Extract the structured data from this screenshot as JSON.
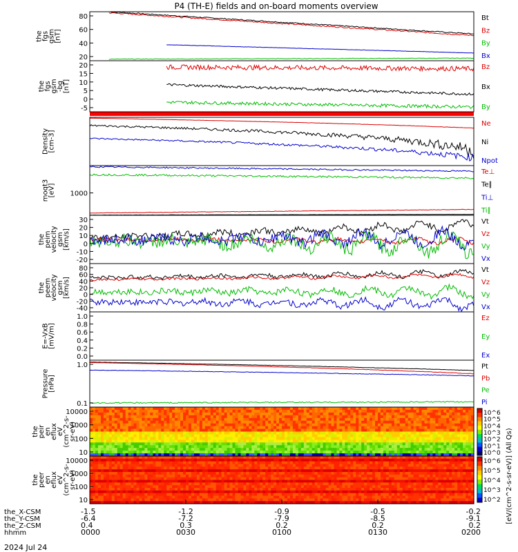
{
  "title": "P4 (TH-E) fields and on-board moments overview",
  "date_label": "2024 Jul 24",
  "colorbar_label": "[eV/(cm^2-s-sr-eV)] (All Qs)",
  "colorbar_ticks": [
    "10^6",
    "10^5",
    "10^4",
    "10^3",
    "10^2",
    "10^1",
    "10^0"
  ],
  "colorbar_ticks2": [
    "10^6",
    "10^5",
    "10^4",
    "10^3",
    "10^2"
  ],
  "footer": {
    "rows": [
      {
        "label": "the_X-CSM",
        "values": [
          "-1.5",
          "-1.2",
          "-0.9",
          "-0.5",
          "-0.2"
        ]
      },
      {
        "label": "the_Y-CSM",
        "values": [
          "-6.4",
          "-7.2",
          "-7.9",
          "-8.5",
          "-9.1"
        ]
      },
      {
        "label": "the_Z-CSM",
        "values": [
          "0.4",
          "0.3",
          "0.2",
          "0.2",
          "0.2"
        ]
      },
      {
        "label": "hhmm",
        "values": [
          "0000",
          "0030",
          "0100",
          "0130",
          "0200"
        ]
      }
    ]
  },
  "chart_data": [
    {
      "id": "p1",
      "type": "line",
      "ylabel": [
        "the",
        "fgs",
        "gsm",
        "[nT]"
      ],
      "yticks": [
        "80",
        "60",
        "40",
        "20"
      ],
      "ylim": [
        0,
        95
      ],
      "series": [
        {
          "name": "Bt",
          "color": "#000000",
          "start": 95,
          "end": 52,
          "noise": 1.0,
          "startx": 0.05
        },
        {
          "name": "Bz",
          "color": "#dd0000",
          "start": 93,
          "end": 49,
          "noise": 1.2,
          "startx": 0.05
        },
        {
          "name": "By",
          "color": "#00bb00",
          "start": 3,
          "end": 5,
          "noise": 0.5,
          "startx": 0.05
        },
        {
          "name": "Bx",
          "color": "#0000cc",
          "start": 31,
          "end": 15,
          "noise": 0.3,
          "startx": 0.2
        }
      ]
    },
    {
      "id": "p2",
      "type": "line",
      "ylabel": [
        "the",
        "fgs",
        "gsm",
        "-bg",
        "[nT]"
      ],
      "yticks": [
        "20",
        "15",
        "10",
        "5",
        "0",
        "-5"
      ],
      "ylim": [
        -10,
        22
      ],
      "series": [
        {
          "name": "Bz",
          "color": "#dd0000",
          "start": 18,
          "end": 17,
          "noise": 1.5,
          "startx": 0.2
        },
        {
          "name": "Bx",
          "color": "#000000",
          "start": 7,
          "end": 1,
          "noise": 0.8,
          "startx": 0.2
        },
        {
          "name": "By",
          "color": "#00bb00",
          "start": -4,
          "end": -7,
          "noise": 1.0,
          "startx": 0.2
        }
      ]
    },
    {
      "id": "p3",
      "type": "line",
      "ylabel": [
        "Density",
        "[cm-3]"
      ],
      "log": true,
      "yticks": [],
      "ylim": [
        0.5,
        30
      ],
      "series": [
        {
          "name": "Ne",
          "color": "#dd0000",
          "start": 28,
          "end": 12,
          "noise": 0.2,
          "startx": 0.0
        },
        {
          "name": "Ni",
          "color": "#000000",
          "start": 15,
          "end": 2,
          "noise": 1.2,
          "startx": 0.0
        },
        {
          "name": "Npot",
          "color": "#0000cc",
          "start": 5,
          "end": 1,
          "noise": 0.3,
          "startx": 0.0
        }
      ]
    },
    {
      "id": "p4",
      "type": "line",
      "ylabel": [
        "moqt3",
        "[eV]"
      ],
      "yticks": [
        "1000"
      ],
      "ylim": [
        0,
        2200
      ],
      "series": [
        {
          "name": "Te⊥",
          "color": "#dd0000",
          "start": 100,
          "end": 260,
          "noise": 10,
          "startx": 0.0
        },
        {
          "name": "Te∥",
          "color": "#000000",
          "start": 10,
          "end": 40,
          "noise": 4,
          "startx": 0.0
        },
        {
          "name": "Ti⊥",
          "color": "#0000cc",
          "start": 2150,
          "end": 1950,
          "noise": 30,
          "startx": 0.0
        },
        {
          "name": "Ti∥",
          "color": "#00bb00",
          "start": 1800,
          "end": 1650,
          "noise": 40,
          "startx": 0.0
        }
      ]
    },
    {
      "id": "p5",
      "type": "line",
      "ylabel": [
        "the",
        "peim",
        "velocity",
        "gsm",
        "[km/s]"
      ],
      "yticks": [
        "30",
        "20",
        "10",
        "0",
        "-10",
        "-20"
      ],
      "ylim": [
        -35,
        40
      ],
      "series": [
        {
          "name": "Vt",
          "color": "#000000",
          "start": 5,
          "end": 25,
          "noise": 5,
          "startx": 0.0
        },
        {
          "name": "Vz",
          "color": "#dd0000",
          "start": 2,
          "end": 0,
          "noise": 3,
          "startx": 0.0
        },
        {
          "name": "Vy",
          "color": "#00bb00",
          "start": 0,
          "end": -5,
          "noise": 10,
          "startx": 0.0
        },
        {
          "name": "Vx",
          "color": "#0000cc",
          "start": 2,
          "end": 5,
          "noise": 8,
          "startx": 0.0
        }
      ]
    },
    {
      "id": "p6",
      "type": "line",
      "ylabel": [
        "the",
        "peem",
        "velocity",
        "gsm",
        "[km/s]"
      ],
      "yticks": [
        "80",
        "60",
        "40",
        "20",
        "0",
        "-20",
        "-40"
      ],
      "ylim": [
        -40,
        80
      ],
      "series": [
        {
          "name": "Vt",
          "color": "#000000",
          "start": 45,
          "end": 55,
          "noise": 5,
          "startx": 0.0
        },
        {
          "name": "Vz",
          "color": "#dd0000",
          "start": 40,
          "end": 50,
          "noise": 3,
          "startx": 0.0
        },
        {
          "name": "Vy",
          "color": "#00bb00",
          "start": 10,
          "end": 10,
          "noise": 8,
          "startx": 0.0
        },
        {
          "name": "Vx",
          "color": "#0000cc",
          "start": -15,
          "end": -20,
          "noise": 8,
          "startx": 0.0
        }
      ]
    },
    {
      "id": "p7",
      "type": "line",
      "ylabel": [
        "E=-VxB",
        "[mV/m]"
      ],
      "yticks": [
        "1.0",
        "0.8",
        "0.6",
        "0.4",
        "0.2",
        "0.0"
      ],
      "ylim": [
        0,
        1
      ],
      "series": [
        {
          "name": "Ez",
          "color": "#dd0000"
        },
        {
          "name": "Ey",
          "color": "#00bb00"
        },
        {
          "name": "Ex",
          "color": "#0000cc"
        }
      ]
    },
    {
      "id": "p8",
      "type": "line",
      "ylabel": [
        "Pressure",
        "[nPa]"
      ],
      "log": true,
      "yticks": [
        "1.0",
        "0.1"
      ],
      "ylim": [
        0.08,
        3
      ],
      "series": [
        {
          "name": "Pt",
          "color": "#000000",
          "start": 2.6,
          "end": 1.35,
          "noise": 0.02,
          "startx": 0.0
        },
        {
          "name": "Pb",
          "color": "#dd0000",
          "start": 2.5,
          "end": 1.05,
          "noise": 0.02,
          "startx": 0.0
        },
        {
          "name": "Pe",
          "color": "#00bb00",
          "start": 0.11,
          "end": 0.12,
          "noise": 0.005,
          "startx": 0.0
        },
        {
          "name": "Pi",
          "color": "#0000cc",
          "start": 1.4,
          "end": 0.9,
          "noise": 0.02,
          "startx": 0.0
        }
      ]
    },
    {
      "id": "p9",
      "type": "heatmap",
      "ylabel": [
        "the",
        "peir",
        "en",
        "eflux",
        "eV",
        "(cm^2-s-",
        "sr-eV)"
      ],
      "yticks": [
        "10000",
        "1000",
        "100",
        "10"
      ]
    },
    {
      "id": "p10",
      "type": "heatmap",
      "ylabel": [
        "the",
        "peer",
        "en",
        "eflux",
        "eV",
        "(cm^2-s-",
        "sr-eV)"
      ],
      "yticks": [
        "10000",
        "1000",
        "100",
        "10"
      ]
    }
  ],
  "colors": {
    "red": "#dd0000",
    "green": "#00bb00",
    "blue": "#0000cc",
    "black": "#000000"
  }
}
